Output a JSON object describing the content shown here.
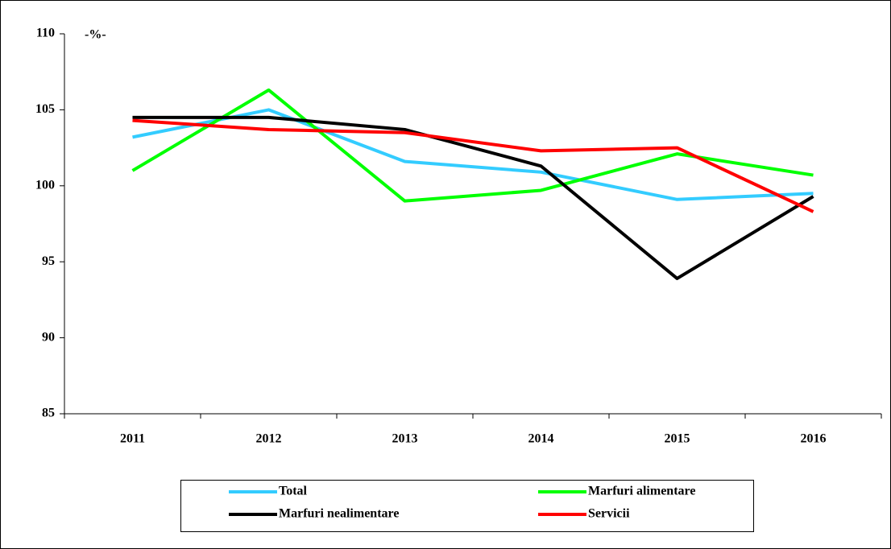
{
  "chart_data": {
    "type": "line",
    "unit_label": "-%-",
    "categories": [
      "2011",
      "2012",
      "2013",
      "2014",
      "2015",
      "2016"
    ],
    "series": [
      {
        "name": "Total",
        "color": "#33ccff",
        "values": [
          103.2,
          105.0,
          101.6,
          100.9,
          99.1,
          99.5
        ]
      },
      {
        "name": "Marfuri alimentare",
        "color": "#00ff00",
        "values": [
          101.0,
          106.3,
          99.0,
          99.7,
          102.1,
          100.7
        ]
      },
      {
        "name": "Marfuri nealimentare",
        "color": "#000000",
        "values": [
          104.5,
          104.5,
          103.7,
          101.3,
          93.9,
          99.3
        ]
      },
      {
        "name": "Servicii",
        "color": "#ff0000",
        "values": [
          104.3,
          103.7,
          103.5,
          102.3,
          102.5,
          98.3
        ]
      }
    ],
    "ylim": [
      85,
      110
    ],
    "yticks": [
      85,
      90,
      95,
      100,
      105,
      110
    ]
  }
}
